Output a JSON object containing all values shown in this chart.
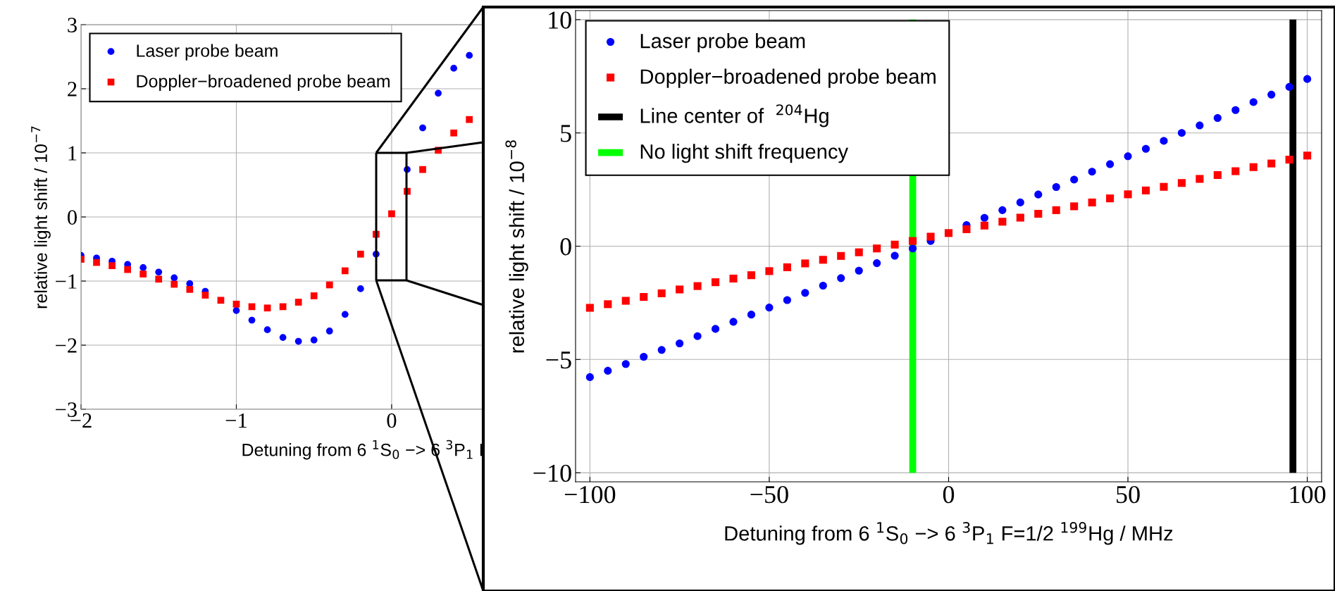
{
  "chart_data": [
    {
      "type": "scatter",
      "xlabel": "Detuning from 6 $^{1}$S$_{0}$ −> 6 $^{3}$P$_{1}$ F=",
      "ylabel": "relative light shift / 10$^{−7}$",
      "xlim": [
        -2,
        0.59
      ],
      "ylim": [
        -3,
        3
      ],
      "xticks": [
        -2,
        -1,
        0
      ],
      "yticks": [
        -3,
        -2,
        -1,
        0,
        1,
        2,
        3
      ],
      "grid": true,
      "legend": "top left",
      "series": [
        {
          "name": "Laser probe beam",
          "color": "#0000ff",
          "marker": "circle",
          "x": [
            -2,
            -1.9,
            -1.8,
            -1.7,
            -1.6,
            -1.5,
            -1.4,
            -1.3,
            -1.2,
            -1.1,
            -1.0,
            -0.9,
            -0.8,
            -0.7,
            -0.6,
            -0.5,
            -0.4,
            -0.3,
            -0.2,
            -0.1,
            0,
            0.1,
            0.2,
            0.3,
            0.4,
            0.5
          ],
          "values": [
            -0.6,
            -0.64,
            -0.69,
            -0.74,
            -0.79,
            -0.86,
            -0.95,
            -1.04,
            -1.16,
            null,
            -1.46,
            -1.61,
            -1.76,
            -1.88,
            -1.94,
            -1.92,
            -1.78,
            -1.52,
            -1.12,
            -0.58,
            null,
            0.74,
            1.39,
            1.93,
            2.32,
            2.52
          ]
        },
        {
          "name": "Doppler−broadened probe beam",
          "color": "#ff0000",
          "marker": "square",
          "x": [
            -2,
            -1.9,
            -1.8,
            -1.7,
            -1.6,
            -1.5,
            -1.4,
            -1.3,
            -1.2,
            -1.1,
            -1.0,
            -0.9,
            -0.8,
            -0.7,
            -0.6,
            -0.5,
            -0.4,
            -0.3,
            -0.2,
            -0.1,
            0,
            0.1,
            0.2,
            0.3,
            0.4,
            0.5
          ],
          "values": [
            -0.66,
            -0.71,
            -0.76,
            -0.82,
            -0.89,
            -0.97,
            -1.05,
            -1.13,
            -1.22,
            -1.3,
            -1.36,
            -1.4,
            -1.42,
            -1.4,
            -1.33,
            -1.23,
            -1.06,
            -0.84,
            -0.58,
            -0.27,
            0.05,
            0.4,
            0.74,
            1.04,
            1.31,
            1.52
          ]
        }
      ]
    },
    {
      "type": "scatter",
      "xlabel": "Detuning from 6 $^{1}$S$_{0}$ −> 6 $^{3}$P$_{1}$ F=1/2 $^{199}$Hg / MHz",
      "ylabel": "relative light shift / 10$^{−8}$",
      "xlim": [
        -104,
        104
      ],
      "ylim": [
        -10.4,
        10.4
      ],
      "xticks": [
        -100,
        -50,
        0,
        50,
        100
      ],
      "yticks": [
        -10,
        -5,
        0,
        5,
        10
      ],
      "grid": true,
      "legend": "top left",
      "x": [
        -100,
        -95,
        -90,
        -85,
        -80,
        -75,
        -70,
        -65,
        -60,
        -55,
        -50,
        -45,
        -40,
        -35,
        -30,
        -25,
        -20,
        -15,
        -10,
        -5,
        0,
        5,
        10,
        15,
        20,
        25,
        30,
        35,
        40,
        45,
        50,
        55,
        60,
        65,
        70,
        75,
        80,
        85,
        90,
        95,
        100
      ],
      "series": [
        {
          "name": "Laser probe beam",
          "color": "#0000ff",
          "marker": "circle",
          "values": [
            -5.78,
            -5.5,
            -5.2,
            -4.88,
            -4.58,
            -4.29,
            -3.97,
            -3.65,
            -3.34,
            -3.02,
            -2.71,
            -2.38,
            -2.06,
            -1.74,
            -1.41,
            -1.08,
            -0.75,
            -0.42,
            -0.1,
            0.23,
            null,
            0.93,
            1.25,
            1.59,
            1.93,
            2.28,
            2.61,
            2.94,
            3.29,
            3.62,
            3.97,
            4.3,
            4.65,
            5.0,
            5.33,
            5.66,
            6.01,
            6.36,
            6.69,
            7.03,
            7.38
          ]
        },
        {
          "name": "Line center of  $^{204}$Hg",
          "type": "line",
          "color": "#000000",
          "marker": "none",
          "x": [
            96,
            96
          ],
          "values": [
            -10,
            10
          ]
        },
        {
          "name": "No light shift frequency",
          "type": "line",
          "color": "#00ff00",
          "marker": "none",
          "x": [
            -10,
            -10
          ],
          "values": [
            -10,
            10
          ]
        },
        {
          "name": "Doppler−broadened probe beam",
          "color": "#ff0000",
          "marker": "square",
          "values": [
            -2.72,
            -2.56,
            -2.41,
            -2.24,
            -2.08,
            -1.91,
            -1.76,
            -1.59,
            -1.43,
            -1.28,
            -1.1,
            -0.93,
            -0.76,
            -0.6,
            -0.43,
            -0.27,
            -0.1,
            0.07,
            0.23,
            0.42,
            0.58,
            0.75,
            0.91,
            1.08,
            1.26,
            1.43,
            1.59,
            1.76,
            1.93,
            2.11,
            2.29,
            2.46,
            2.62,
            2.79,
            2.97,
            3.14,
            3.31,
            3.49,
            3.65,
            3.82,
            4.0
          ]
        }
      ]
    }
  ]
}
